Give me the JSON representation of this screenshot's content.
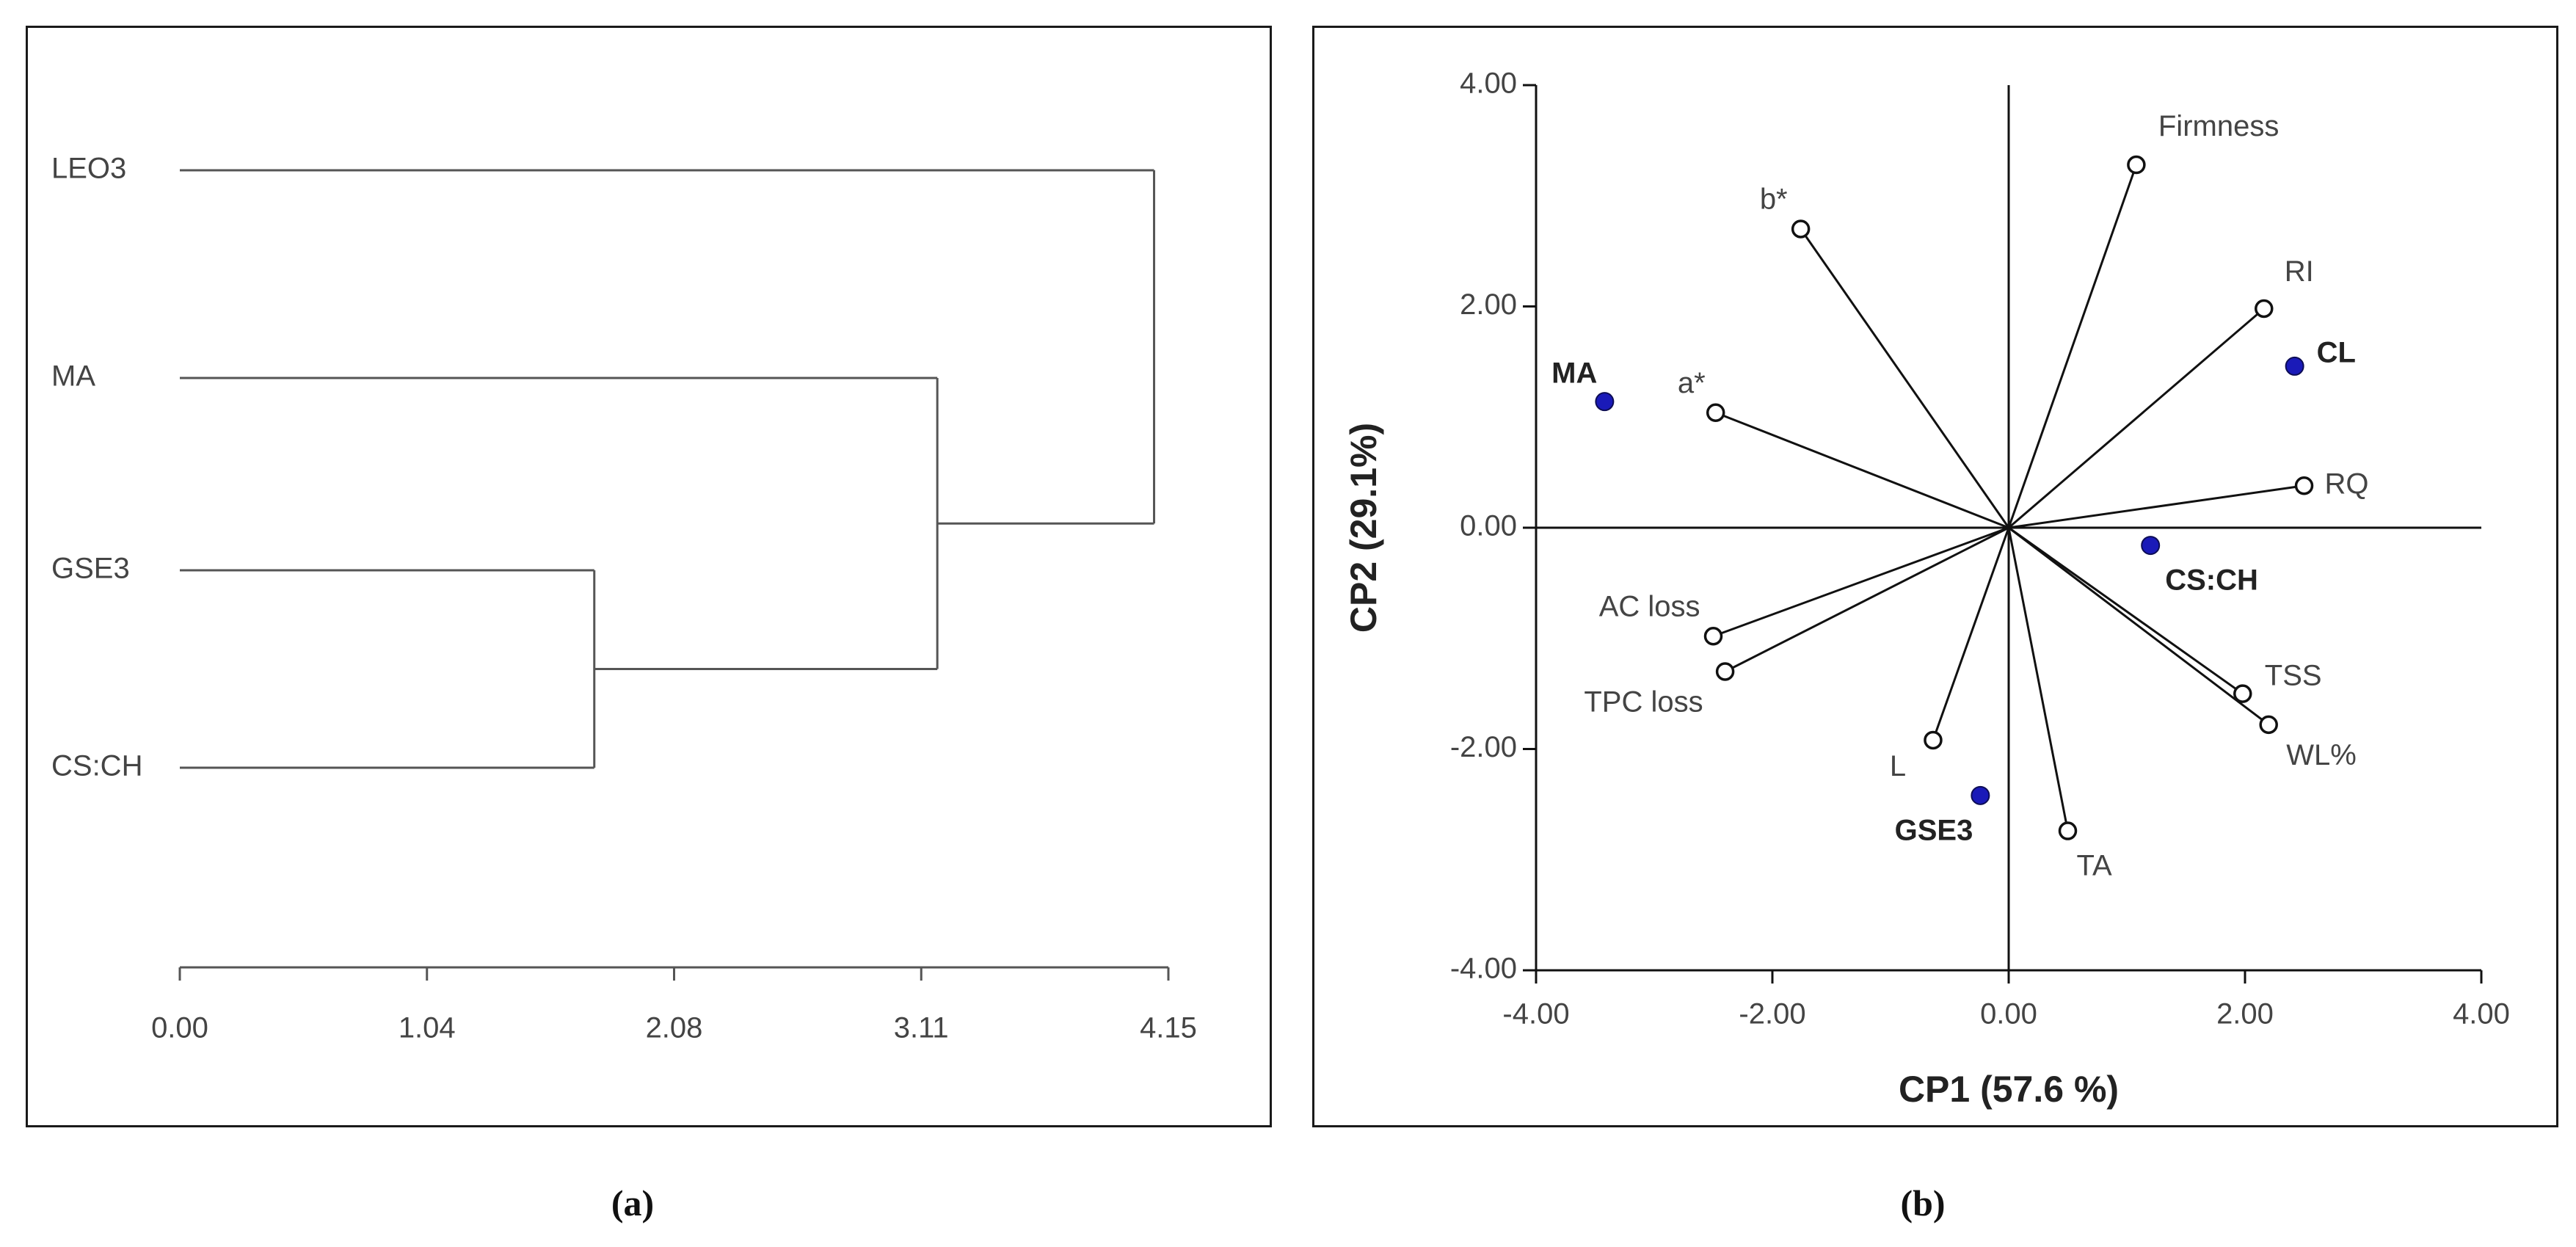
{
  "panels": [
    {
      "caption": "(a)"
    },
    {
      "caption": "(b)"
    }
  ],
  "chart_data": [
    {
      "type": "dendrogram",
      "leaves": [
        "LEO3",
        "MA",
        "GSE3",
        "CS:CH"
      ],
      "merges": [
        {
          "left": "GSE3",
          "right": "CS:CH",
          "height": 1.74
        },
        {
          "left": "MA",
          "right": "GSE3+CS:CH",
          "height": 3.18
        },
        {
          "left": "LEO3",
          "right": "MA+GSE3+CS:CH",
          "height": 4.09
        }
      ],
      "x_ticks": [
        "0.00",
        "1.04",
        "2.08",
        "3.11",
        "4.15"
      ],
      "xlim": [
        0,
        4.15
      ]
    },
    {
      "type": "scatter",
      "xlabel": "CP1 (57.6 %)",
      "ylabel": "CP2 (29.1%)",
      "xlim": [
        -4,
        4
      ],
      "ylim": [
        -4,
        4
      ],
      "x_ticks": [
        "-4.00",
        "-2.00",
        "0.00",
        "2.00",
        "4.00"
      ],
      "y_ticks": [
        "-4.00",
        "-2.00",
        "0.00",
        "2.00",
        "4.00"
      ],
      "variables": [
        {
          "name": "Firmness",
          "x": 1.08,
          "y": 3.28
        },
        {
          "name": "b*",
          "x": -1.76,
          "y": 2.7
        },
        {
          "name": "RI",
          "x": 2.16,
          "y": 1.98
        },
        {
          "name": "a*",
          "x": -2.48,
          "y": 1.04
        },
        {
          "name": "RQ",
          "x": 2.5,
          "y": 0.38
        },
        {
          "name": "AC loss",
          "x": -2.5,
          "y": -0.98
        },
        {
          "name": "TPC loss",
          "x": -2.4,
          "y": -1.3
        },
        {
          "name": "L",
          "x": -0.64,
          "y": -1.92
        },
        {
          "name": "TSS",
          "x": 1.98,
          "y": -1.5
        },
        {
          "name": "WL%",
          "x": 2.2,
          "y": -1.78
        },
        {
          "name": "TA",
          "x": 0.5,
          "y": -2.74
        }
      ],
      "treatments": [
        {
          "name": "MA",
          "x": -3.42,
          "y": 1.14
        },
        {
          "name": "CL",
          "x": 2.42,
          "y": 1.46
        },
        {
          "name": "CS:CH",
          "x": 1.2,
          "y": -0.16
        },
        {
          "name": "GSE3",
          "x": -0.24,
          "y": -2.42
        }
      ]
    }
  ]
}
